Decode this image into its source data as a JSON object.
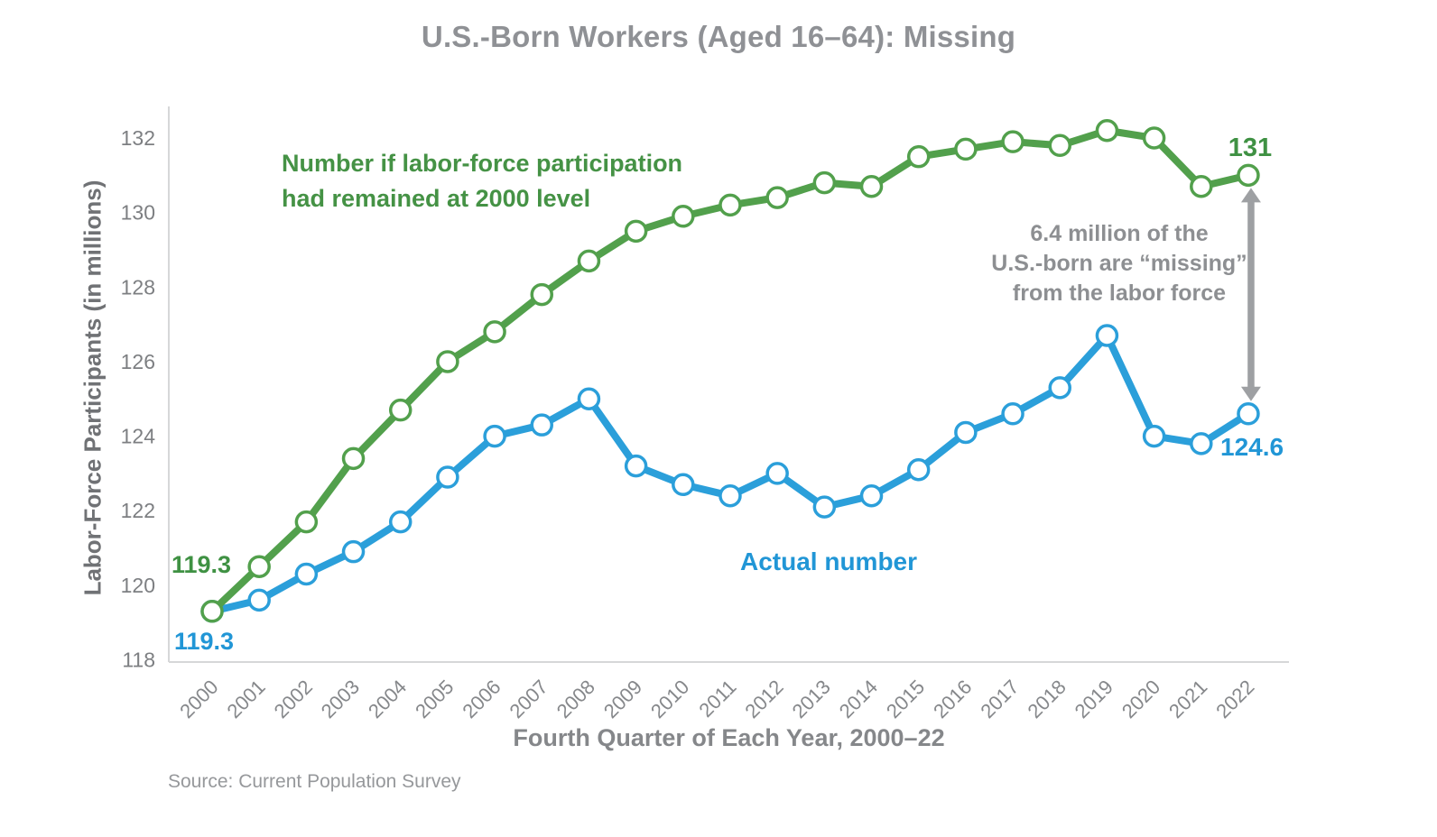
{
  "title": "U.S.-Born Workers (Aged 16–64): Missing",
  "y_axis": {
    "label": "Labor-Force Participants (in millions)"
  },
  "x_axis": {
    "label": "Fourth Quarter of Each Year, 2000–22"
  },
  "source": "Source: Current Population Survey",
  "annotations": {
    "counterfactual_label": "Number if labor-force participation\nhad remained at 2000 level",
    "missing_note": "6.4 million of the\nU.S.-born are “missing”\nfrom the labor force",
    "actual_label": "Actual number",
    "start_green": "119.3",
    "start_blue": "119.3",
    "end_green": "131",
    "end_blue": "124.6"
  },
  "chart_data": {
    "type": "line",
    "x": [
      2000,
      2001,
      2002,
      2003,
      2004,
      2005,
      2006,
      2007,
      2008,
      2009,
      2010,
      2011,
      2012,
      2013,
      2014,
      2015,
      2016,
      2017,
      2018,
      2019,
      2020,
      2021,
      2022
    ],
    "series": [
      {
        "name": "Number if labor-force participation had remained at 2000 level",
        "key": "counterfactual",
        "color": "#52a04c",
        "values": [
          119.3,
          120.5,
          121.7,
          123.4,
          124.7,
          126.0,
          126.8,
          127.8,
          128.7,
          129.5,
          129.9,
          130.2,
          130.4,
          130.8,
          130.7,
          131.5,
          131.7,
          131.9,
          131.8,
          132.2,
          132.0,
          130.7,
          131.0
        ]
      },
      {
        "name": "Actual number",
        "key": "actual",
        "color": "#2b9fda",
        "values": [
          119.3,
          119.6,
          120.3,
          120.9,
          121.7,
          122.9,
          124.0,
          124.3,
          125.0,
          123.2,
          122.7,
          122.4,
          123.0,
          122.1,
          122.4,
          123.1,
          124.1,
          124.6,
          125.3,
          126.7,
          124.0,
          123.8,
          124.6
        ]
      }
    ],
    "ylim": [
      118,
      132
    ],
    "yticks": [
      118,
      120,
      122,
      124,
      126,
      128,
      130,
      132
    ],
    "grid": false,
    "legend_position": "inline-annotations",
    "gap_annotation": {
      "year": 2022,
      "gap_value": 6.4,
      "arrow_color": "#9ea0a3"
    }
  }
}
